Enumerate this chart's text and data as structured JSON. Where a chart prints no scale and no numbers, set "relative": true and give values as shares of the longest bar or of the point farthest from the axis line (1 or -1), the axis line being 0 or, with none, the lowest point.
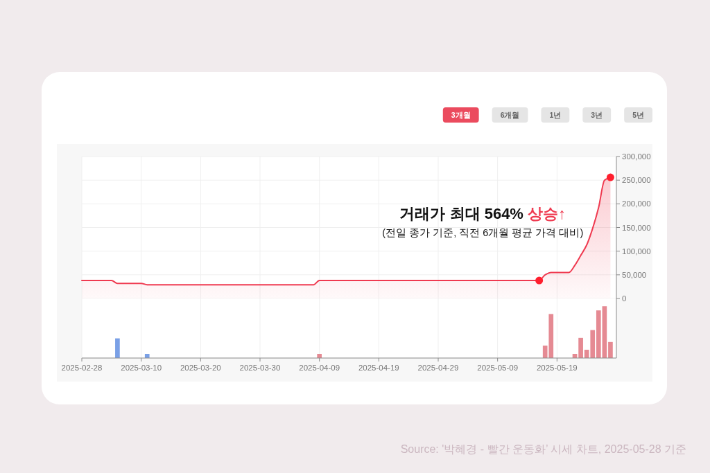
{
  "chart_data": [
    {
      "type": "area",
      "title": "거래가 최대 564% 상승↑",
      "subtitle": "(전일 종가 기준, 직전 6개월 평균 가격 대비)",
      "series": [
        {
          "color": "#ef3a50",
          "x": [
            "2025-02-28",
            "2025-03-05",
            "2025-03-06",
            "2025-03-10",
            "2025-03-11",
            "2025-04-08",
            "2025-04-09",
            "2025-05-16",
            "2025-05-17",
            "2025-05-18",
            "2025-05-21",
            "2025-05-22",
            "2025-05-23",
            "2025-05-24",
            "2025-05-25",
            "2025-05-26",
            "2025-05-27",
            "2025-05-28"
          ],
          "values": [
            38000,
            38000,
            32000,
            32000,
            29000,
            29000,
            38000,
            38000,
            50000,
            55000,
            55000,
            70000,
            91000,
            113000,
            148000,
            192000,
            250000,
            256000
          ]
        },
        {
          "type": "scatter",
          "color": "#ff1f2e",
          "marker": "circle",
          "x": [
            "2025-05-16",
            "2025-05-28"
          ],
          "values": [
            38000,
            256000
          ]
        }
      ],
      "xlim": [
        "2025-02-28",
        "2025-05-29"
      ],
      "xticks": [
        "2025-02-28",
        "2025-03-10",
        "2025-03-20",
        "2025-03-30",
        "2025-04-09",
        "2025-04-19",
        "2025-04-29",
        "2025-05-09",
        "2025-05-19"
      ],
      "ylim": [
        0,
        300000
      ],
      "yticks": [
        0,
        {
          "value": 50000,
          "label": "50,000"
        },
        {
          "value": 100000,
          "label": "100,000"
        },
        {
          "value": 150000,
          "label": "150,000"
        },
        {
          "value": 200000,
          "label": "200,000"
        },
        {
          "value": 250000,
          "label": "250,000"
        },
        {
          "value": 300000,
          "label": "300,000"
        }
      ],
      "grid": true,
      "tick_labels": "y",
      "annotations": [
        "3개월",
        "6개월",
        "1년",
        "3년",
        "5년"
      ]
    },
    {
      "type": "bar",
      "x": [
        "2025-03-06",
        "2025-03-11",
        "2025-04-09",
        "2025-05-17",
        "2025-05-18",
        "2025-05-22",
        "2025-05-23",
        "2025-05-24",
        "2025-05-25",
        "2025-05-26",
        "2025-05-27",
        "2025-05-28"
      ],
      "values": [
        0.38,
        0.08,
        0.08,
        0.24,
        0.85,
        0.08,
        0.39,
        0.16,
        0.54,
        0.92,
        1,
        0.31
      ],
      "colors": [
        "#7aa0e6",
        "#7aa0e6",
        "#e58a93",
        "#e58a93",
        "#e58a93",
        "#e58a93",
        "#e58a93",
        "#e58a93",
        "#e58a93",
        "#e58a93",
        "#e58a93",
        "#e58a93"
      ],
      "relative": true,
      "xlim": [
        "2025-02-28",
        "2025-05-29"
      ],
      "xticks": [
        "2025-02-28",
        "2025-03-10",
        "2025-03-20",
        "2025-03-30",
        "2025-04-09",
        "2025-04-19",
        "2025-04-29",
        "2025-05-09",
        "2025-05-19"
      ],
      "tick_labels": "x",
      "grid": "x",
      "annotations": [
        "Source: '박혜경 - 빨간 운동화’ 시세 차트, 2025-05-28 기준"
      ]
    }
  ]
}
